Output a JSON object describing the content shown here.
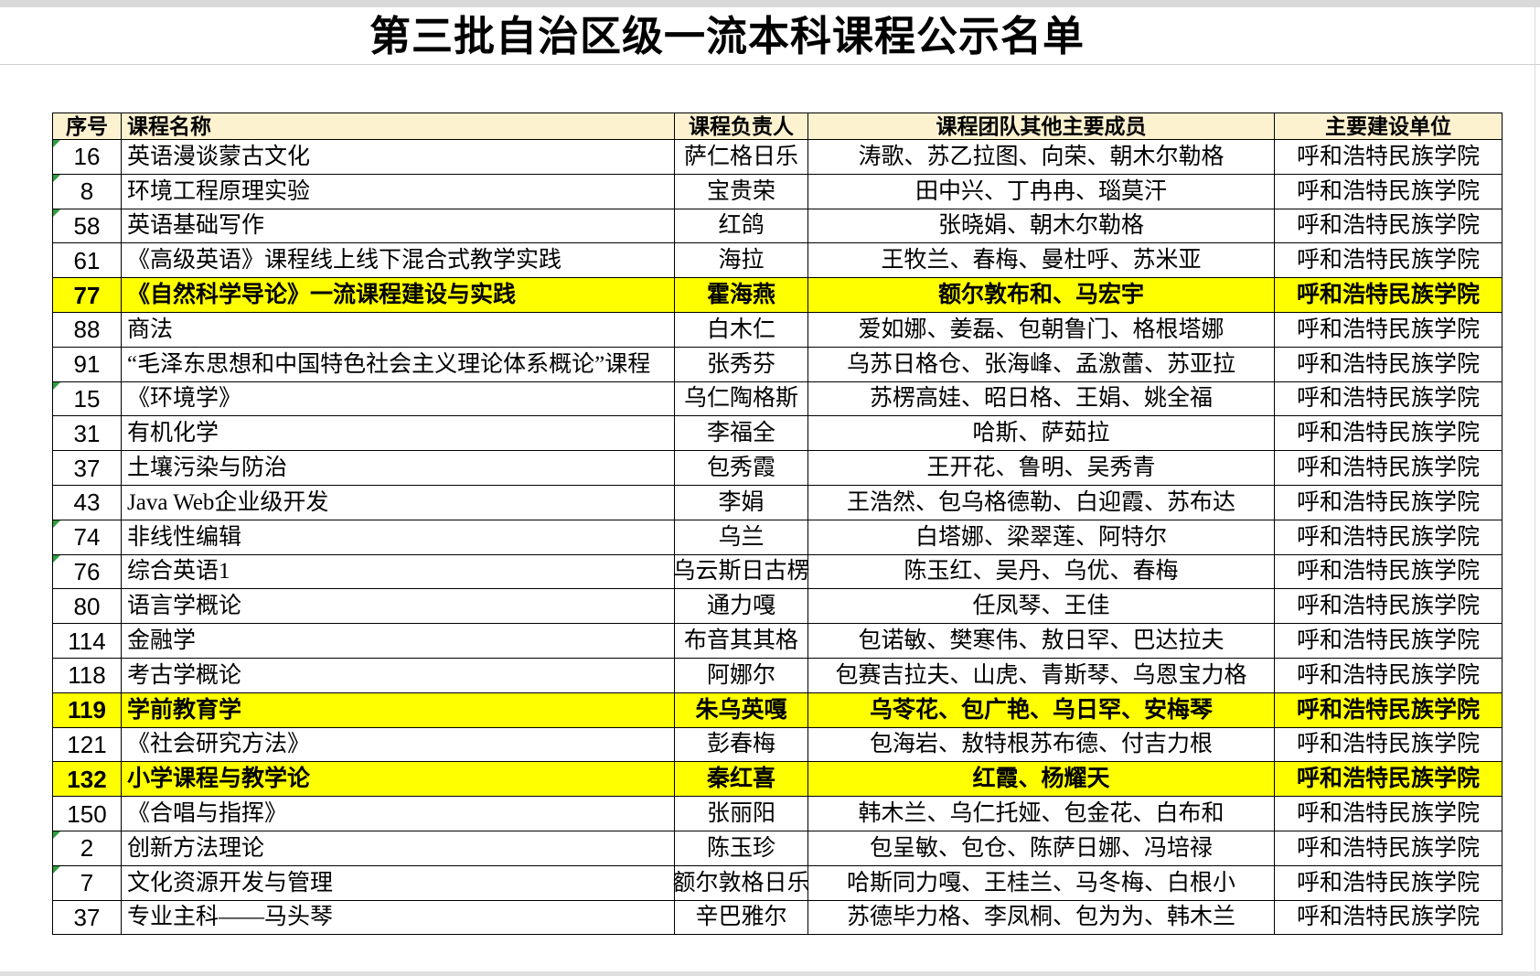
{
  "title": "第三批自治区级一流本科课程公示名单",
  "colors": {
    "header_bg": "#FDF2D0",
    "highlight_yellow": "#FFFF00",
    "border": "#000000",
    "error_marker_green": "#2F9E3D"
  },
  "table": {
    "headers": [
      "序号",
      "课程名称",
      "课程负责人",
      "课程团队其他主要成员",
      "主要建设单位"
    ],
    "rows": [
      {
        "no": "16",
        "course": "英语漫谈蒙古文化",
        "leader": "萨仁格日乐",
        "members": "涛歌、苏乙拉图、向荣、朝木尔勒格",
        "unit": "呼和浩特民族学院",
        "highlighted": false,
        "marker": true
      },
      {
        "no": "8",
        "course": "环境工程原理实验",
        "leader": "宝贵荣",
        "members": "田中兴、丁冉冉、瑙莫汗",
        "unit": "呼和浩特民族学院",
        "highlighted": false,
        "marker": true
      },
      {
        "no": "58",
        "course": "英语基础写作",
        "leader": "红鸽",
        "members": "张晓娟、朝木尔勒格",
        "unit": "呼和浩特民族学院",
        "highlighted": false,
        "marker": true
      },
      {
        "no": "61",
        "course": "《高级英语》课程线上线下混合式教学实践",
        "leader": "海拉",
        "members": "王牧兰、春梅、曼杜呼、苏米亚",
        "unit": "呼和浩特民族学院",
        "highlighted": false,
        "marker": false
      },
      {
        "no": "77",
        "course": "《自然科学导论》一流课程建设与实践",
        "leader": "霍海燕",
        "members": "额尔敦布和、马宏宇",
        "unit": "呼和浩特民族学院",
        "highlighted": true,
        "marker": false
      },
      {
        "no": "88",
        "course": "商法",
        "leader": "白木仁",
        "members": "爱如娜、姜磊、包朝鲁门、格根塔娜",
        "unit": "呼和浩特民族学院",
        "highlighted": false,
        "marker": false
      },
      {
        "no": "91",
        "course": "“毛泽东思想和中国特色社会主义理论体系概论”课程",
        "leader": "张秀芬",
        "members": "乌苏日格仓、张海峰、孟激蕾、苏亚拉",
        "unit": "呼和浩特民族学院",
        "highlighted": false,
        "marker": false
      },
      {
        "no": "15",
        "course": "《环境学》",
        "leader": "乌仁陶格斯",
        "members": "苏楞高娃、昭日格、王娟、姚全福",
        "unit": "呼和浩特民族学院",
        "highlighted": false,
        "marker": true
      },
      {
        "no": "31",
        "course": "有机化学",
        "leader": "李福全",
        "members": "哈斯、萨茹拉",
        "unit": "呼和浩特民族学院",
        "highlighted": false,
        "marker": false
      },
      {
        "no": "37",
        "course": "土壤污染与防治",
        "leader": "包秀霞",
        "members": "王开花、鲁明、吴秀青",
        "unit": "呼和浩特民族学院",
        "highlighted": false,
        "marker": false
      },
      {
        "no": "43",
        "course": "Java Web企业级开发",
        "leader": "李娟",
        "members": "王浩然、包乌格德勒、白迎霞、苏布达",
        "unit": "呼和浩特民族学院",
        "highlighted": false,
        "marker": false
      },
      {
        "no": "74",
        "course": "非线性编辑",
        "leader": "乌兰",
        "members": "白塔娜、梁翠莲、阿特尔",
        "unit": "呼和浩特民族学院",
        "highlighted": false,
        "marker": true
      },
      {
        "no": "76",
        "course": "综合英语1",
        "leader": "乌云斯日古楞",
        "members": "陈玉红、吴丹、乌优、春梅",
        "unit": "呼和浩特民族学院",
        "highlighted": false,
        "marker": true
      },
      {
        "no": "80",
        "course": "语言学概论",
        "leader": "通力嘎",
        "members": "任凤琴、王佳",
        "unit": "呼和浩特民族学院",
        "highlighted": false,
        "marker": false
      },
      {
        "no": "114",
        "course": "金融学",
        "leader": "布音其其格",
        "members": "包诺敏、樊寒伟、敖日罕、巴达拉夫",
        "unit": "呼和浩特民族学院",
        "highlighted": false,
        "marker": false
      },
      {
        "no": "118",
        "course": "考古学概论",
        "leader": "阿娜尔",
        "members": "包赛吉拉夫、山虎、青斯琴、乌恩宝力格",
        "unit": "呼和浩特民族学院",
        "highlighted": false,
        "marker": false
      },
      {
        "no": "119",
        "course": "学前教育学",
        "leader": "朱乌英嘎",
        "members": "乌苓花、包广艳、乌日罕、安梅琴",
        "unit": "呼和浩特民族学院",
        "highlighted": true,
        "marker": false
      },
      {
        "no": "121",
        "course": "《社会研究方法》",
        "leader": "彭春梅",
        "members": "包海岩、敖特根苏布德、付吉力根",
        "unit": "呼和浩特民族学院",
        "highlighted": false,
        "marker": false
      },
      {
        "no": "132",
        "course": "小学课程与教学论",
        "leader": "秦红喜",
        "members": "红霞、杨耀天",
        "unit": "呼和浩特民族学院",
        "highlighted": true,
        "marker": false
      },
      {
        "no": "150",
        "course": "《合唱与指挥》",
        "leader": "张丽阳",
        "members": "韩木兰、乌仁托娅、包金花、白布和",
        "unit": "呼和浩特民族学院",
        "highlighted": false,
        "marker": false
      },
      {
        "no": "2",
        "course": "创新方法理论",
        "leader": "陈玉珍",
        "members": "包呈敏、包仓、陈萨日娜、冯培禄",
        "unit": "呼和浩特民族学院",
        "highlighted": false,
        "marker": true
      },
      {
        "no": "7",
        "course": "文化资源开发与管理",
        "leader": "额尔敦格日乐",
        "members": "哈斯同力嘎、王桂兰、马冬梅、白根小",
        "unit": "呼和浩特民族学院",
        "highlighted": false,
        "marker": true
      },
      {
        "no": "37",
        "course": "专业主科——马头琴",
        "leader": "辛巴雅尔",
        "members": "苏德毕力格、李凤桐、包为为、韩木兰",
        "unit": "呼和浩特民族学院",
        "highlighted": false,
        "marker": false
      }
    ]
  }
}
